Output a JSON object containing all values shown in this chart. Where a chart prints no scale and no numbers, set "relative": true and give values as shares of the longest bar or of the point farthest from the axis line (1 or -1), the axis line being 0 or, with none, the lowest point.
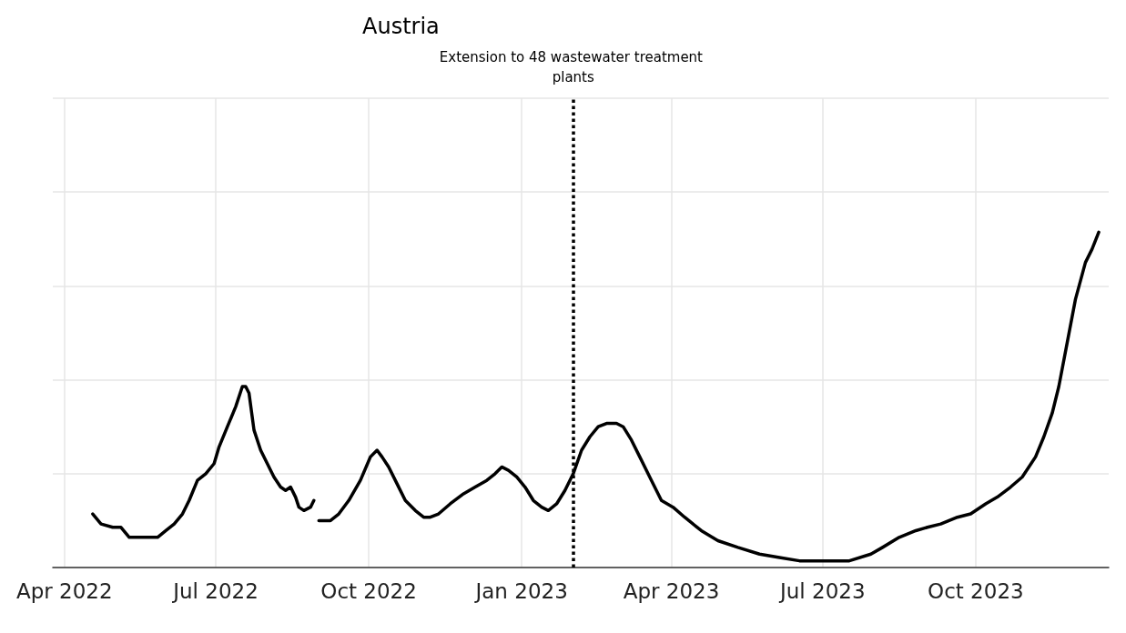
{
  "chart_data": {
    "type": "line",
    "title": "Austria",
    "relative": true,
    "grid": true,
    "marker": "none",
    "line_style": "solid",
    "xlim": [
      "2022-03-25",
      "2023-12-20"
    ],
    "xticks": [
      {
        "value": "2022-04-01",
        "label": "Apr 2022"
      },
      {
        "value": "2022-07-01",
        "label": "Jul 2022"
      },
      {
        "value": "2022-10-01",
        "label": "Oct 2022"
      },
      {
        "value": "2023-01-01",
        "label": "Jan 2023"
      },
      {
        "value": "2023-04-01",
        "label": "Apr 2023"
      },
      {
        "value": "2023-07-01",
        "label": "Jul 2023"
      },
      {
        "value": "2023-10-01",
        "label": "Oct 2023"
      }
    ],
    "ref_lines": [
      {
        "axis": "x",
        "value": "2023-02-01",
        "label": "Extension to 48 wastewater treatment plants",
        "color": "#000000",
        "line_style": "dotted"
      }
    ],
    "series": [
      {
        "color": "#000000",
        "x": [
          "2022-04-18",
          "2022-04-23",
          "2022-04-30",
          "2022-05-05",
          "2022-05-10",
          "2022-05-17",
          "2022-05-22",
          "2022-05-27",
          "2022-06-01",
          "2022-06-06",
          "2022-06-11",
          "2022-06-15",
          "2022-06-20",
          "2022-06-25",
          "2022-06-30",
          "2022-07-03",
          "2022-07-08",
          "2022-07-13",
          "2022-07-17",
          "2022-07-19",
          "2022-07-21",
          "2022-07-24",
          "2022-07-28",
          "2022-08-01",
          "2022-08-05",
          "2022-08-09",
          "2022-08-12",
          "2022-08-15",
          "2022-08-18",
          "2022-08-20",
          "2022-08-23",
          "2022-08-27",
          "2022-08-29",
          "2022-08-31",
          "2022-09-01",
          "2022-09-08",
          "2022-09-13",
          "2022-09-19",
          "2022-09-26",
          "2022-10-02",
          "2022-10-06",
          "2022-10-09",
          "2022-10-13",
          "2022-10-18",
          "2022-10-23",
          "2022-10-29",
          "2022-11-03",
          "2022-11-07",
          "2022-11-12",
          "2022-11-19",
          "2022-11-27",
          "2022-12-04",
          "2022-12-11",
          "2022-12-16",
          "2022-12-20",
          "2022-12-24",
          "2022-12-29",
          "2023-01-03",
          "2023-01-08",
          "2023-01-13",
          "2023-01-17",
          "2023-01-22",
          "2023-01-27",
          "2023-02-01",
          "2023-02-06",
          "2023-02-11",
          "2023-02-16",
          "2023-02-21",
          "2023-02-27",
          "2023-03-03",
          "2023-03-08",
          "2023-03-13",
          "2023-03-20",
          "2023-03-26",
          "2023-04-02",
          "2023-04-09",
          "2023-04-19",
          "2023-04-29",
          "2023-05-11",
          "2023-05-24",
          "2023-06-05",
          "2023-06-17",
          "2023-06-30",
          "2023-07-07",
          "2023-07-17",
          "2023-07-30",
          "2023-08-06",
          "2023-08-16",
          "2023-08-26",
          "2023-09-02",
          "2023-09-10",
          "2023-09-20",
          "2023-09-28",
          "2023-10-07",
          "2023-10-14",
          "2023-10-22",
          "2023-10-29",
          "2023-11-06",
          "2023-11-11",
          "2023-11-16",
          "2023-11-20",
          "2023-11-25",
          "2023-11-30",
          "2023-12-06",
          "2023-12-10",
          "2023-12-14"
        ],
        "values": [
          0.16,
          0.13,
          0.12,
          0.12,
          0.09,
          0.09,
          0.09,
          0.09,
          0.11,
          0.13,
          0.16,
          0.2,
          0.26,
          0.28,
          0.31,
          0.36,
          0.42,
          0.48,
          0.54,
          0.54,
          0.52,
          0.41,
          0.35,
          0.31,
          0.27,
          0.24,
          0.23,
          0.24,
          0.21,
          0.18,
          0.17,
          0.18,
          0.2,
          null,
          0.14,
          0.14,
          0.16,
          0.2,
          0.26,
          0.33,
          0.35,
          0.33,
          0.3,
          0.25,
          0.2,
          0.17,
          0.15,
          0.15,
          0.16,
          0.19,
          0.22,
          0.24,
          0.26,
          0.28,
          0.3,
          0.29,
          0.27,
          0.24,
          0.2,
          0.18,
          0.17,
          0.19,
          0.23,
          0.28,
          0.35,
          0.39,
          0.42,
          0.43,
          0.43,
          0.42,
          0.38,
          0.33,
          0.26,
          0.2,
          0.18,
          0.15,
          0.11,
          0.08,
          0.06,
          0.04,
          0.03,
          0.02,
          0.02,
          0.02,
          0.02,
          0.04,
          0.06,
          0.09,
          0.11,
          0.12,
          0.13,
          0.15,
          0.16,
          0.19,
          0.21,
          0.24,
          0.27,
          0.33,
          0.39,
          0.46,
          0.54,
          0.67,
          0.8,
          0.91,
          0.95,
          1
        ]
      }
    ]
  }
}
